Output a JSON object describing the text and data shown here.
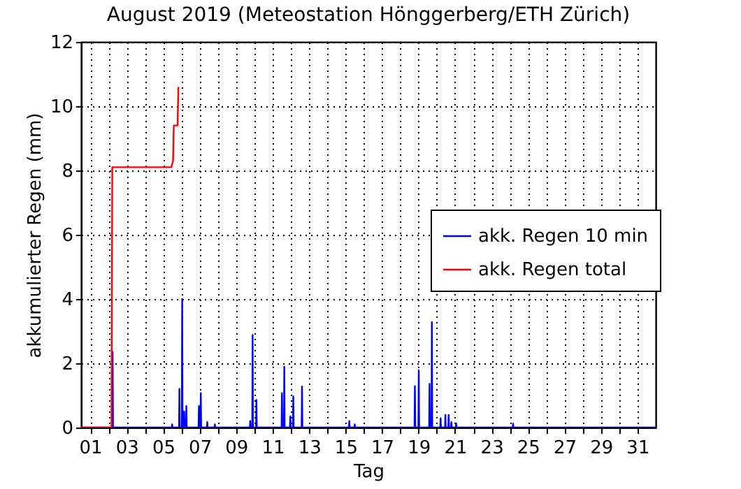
{
  "chart_data": {
    "type": "line",
    "title": "August 2019  (Meteostation Hönggerberg/ETH Zürich)",
    "xlabel": "Tag",
    "ylabel": "akkumulierter Regen (mm)",
    "xlim": [
      "2019-07-31T12:00",
      "2019-09-01T00:00"
    ],
    "xticks": [
      {
        "value": "2019-08-01",
        "label": "01"
      },
      {
        "value": "2019-08-02",
        "label": null
      },
      {
        "value": "2019-08-03",
        "label": "03"
      },
      {
        "value": "2019-08-04",
        "label": null
      },
      {
        "value": "2019-08-05",
        "label": "05"
      },
      {
        "value": "2019-08-06",
        "label": null
      },
      {
        "value": "2019-08-07",
        "label": "07"
      },
      {
        "value": "2019-08-08",
        "label": null
      },
      {
        "value": "2019-08-09",
        "label": "09"
      },
      {
        "value": "2019-08-10",
        "label": null
      },
      {
        "value": "2019-08-11",
        "label": "11"
      },
      {
        "value": "2019-08-12",
        "label": null
      },
      {
        "value": "2019-08-13",
        "label": "13"
      },
      {
        "value": "2019-08-14",
        "label": null
      },
      {
        "value": "2019-08-15",
        "label": "15"
      },
      {
        "value": "2019-08-16",
        "label": null
      },
      {
        "value": "2019-08-17",
        "label": "17"
      },
      {
        "value": "2019-08-18",
        "label": null
      },
      {
        "value": "2019-08-19",
        "label": "19"
      },
      {
        "value": "2019-08-20",
        "label": null
      },
      {
        "value": "2019-08-21",
        "label": "21"
      },
      {
        "value": "2019-08-22",
        "label": null
      },
      {
        "value": "2019-08-23",
        "label": "23"
      },
      {
        "value": "2019-08-24",
        "label": null
      },
      {
        "value": "2019-08-25",
        "label": "25"
      },
      {
        "value": "2019-08-26",
        "label": null
      },
      {
        "value": "2019-08-27",
        "label": "27"
      },
      {
        "value": "2019-08-28",
        "label": null
      },
      {
        "value": "2019-08-29",
        "label": "29"
      },
      {
        "value": "2019-08-30",
        "label": null
      },
      {
        "value": "2019-08-31",
        "label": "31"
      }
    ],
    "ylim": [
      0,
      12
    ],
    "yticks": [
      0,
      2,
      4,
      6,
      8,
      10,
      12
    ],
    "grid": true,
    "legend": "right",
    "line_style": "solid",
    "series": [
      {
        "name": "akk. Regen 10 min",
        "color": "#0000ff",
        "x": [
          "2019-07-31T12:00",
          "2019-08-02T05:00",
          "2019-08-02T05:30",
          "2019-08-02T06:00",
          "2019-08-05T11:20",
          "2019-08-05T11:50",
          "2019-08-05T12:20",
          "2019-08-05T20:50",
          "2019-08-05T21:20",
          "2019-08-05T21:50",
          "2019-08-06T00:30",
          "2019-08-06T01:00",
          "2019-08-06T01:30",
          "2019-08-06T03:10",
          "2019-08-06T03:40",
          "2019-08-06T04:10",
          "2019-08-06T06:00",
          "2019-08-06T06:30",
          "2019-08-06T07:00",
          "2019-08-06T22:30",
          "2019-08-06T23:00",
          "2019-08-06T23:30",
          "2019-08-07T01:00",
          "2019-08-07T01:30",
          "2019-08-07T02:00",
          "2019-08-07T09:30",
          "2019-08-07T10:00",
          "2019-08-07T10:30",
          "2019-08-07T19:30",
          "2019-08-07T20:00",
          "2019-08-07T20:30",
          "2019-08-09T18:00",
          "2019-08-09T18:30",
          "2019-08-09T19:00",
          "2019-08-09T21:10",
          "2019-08-09T21:40",
          "2019-08-09T22:10",
          "2019-08-10T02:10",
          "2019-08-10T02:40",
          "2019-08-10T03:10",
          "2019-08-11T11:45",
          "2019-08-11T12:15",
          "2019-08-11T12:45",
          "2019-08-11T14:50",
          "2019-08-11T15:20",
          "2019-08-11T15:50",
          "2019-08-11T22:45",
          "2019-08-11T23:15",
          "2019-08-11T23:45",
          "2019-08-12T02:40",
          "2019-08-12T03:10",
          "2019-08-12T03:40",
          "2019-08-12T14:10",
          "2019-08-12T14:40",
          "2019-08-12T15:10",
          "2019-08-15T04:20",
          "2019-08-15T04:50",
          "2019-08-15T05:20",
          "2019-08-15T11:30",
          "2019-08-15T12:00",
          "2019-08-15T12:30",
          "2019-08-18T18:40",
          "2019-08-18T19:10",
          "2019-08-18T19:40",
          "2019-08-18T23:45",
          "2019-08-19T00:15",
          "2019-08-19T00:45",
          "2019-08-19T13:55",
          "2019-08-19T14:25",
          "2019-08-19T14:55",
          "2019-08-19T17:00",
          "2019-08-19T17:30",
          "2019-08-19T18:00",
          "2019-08-20T04:30",
          "2019-08-20T05:00",
          "2019-08-20T05:30",
          "2019-08-20T10:45",
          "2019-08-20T11:15",
          "2019-08-20T11:45",
          "2019-08-20T15:05",
          "2019-08-20T15:35",
          "2019-08-20T16:05",
          "2019-08-20T18:40",
          "2019-08-20T19:10",
          "2019-08-20T19:40",
          "2019-08-21T00:55",
          "2019-08-21T01:25",
          "2019-08-21T01:55",
          "2019-08-24T03:50",
          "2019-08-24T04:20",
          "2019-08-24T04:50",
          "2019-09-01T00:00"
        ],
        "values": [
          0,
          0,
          2.35,
          0,
          0,
          0.1,
          0,
          0,
          1.2,
          0,
          0,
          4.0,
          0,
          0,
          0.5,
          0,
          0,
          0.67,
          0,
          0,
          0.67,
          0,
          0,
          1.07,
          0,
          0,
          0.17,
          0,
          0,
          0.1,
          0,
          0,
          0.2,
          0,
          0,
          2.88,
          0,
          0,
          0.86,
          0,
          0,
          1.07,
          0,
          0,
          1.89,
          0,
          0,
          0.35,
          0,
          0,
          0.97,
          0,
          0,
          1.28,
          0,
          0,
          0.2,
          0,
          0,
          0.1,
          0,
          0,
          1.29,
          0,
          0,
          1.78,
          0,
          0,
          1.36,
          0,
          0,
          3.28,
          0,
          0,
          0.29,
          0,
          0,
          0.39,
          0,
          0,
          0.39,
          0,
          0,
          0.17,
          0,
          0,
          0.13,
          0,
          0,
          0.12,
          0,
          0
        ]
      },
      {
        "name": "akk. Regen total",
        "color": "#ff0000",
        "x": [
          "2019-07-31T12:00",
          "2019-08-02T04:00",
          "2019-08-02T05:00",
          "2019-08-05T10:40",
          "2019-08-05T13:00",
          "2019-08-05T14:00",
          "2019-08-05T19:00",
          "2019-08-05T20:00"
        ],
        "values": [
          0,
          0,
          8.1,
          8.1,
          8.3,
          9.4,
          9.4,
          10.6
        ]
      }
    ]
  }
}
